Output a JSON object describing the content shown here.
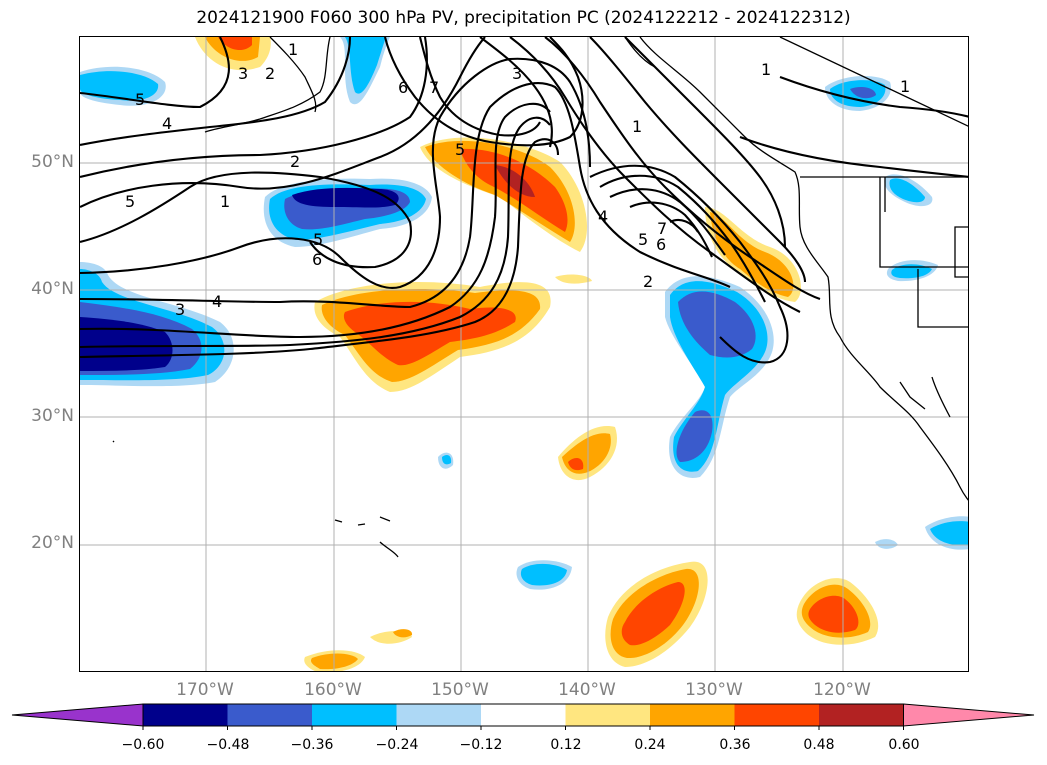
{
  "title": "2024121900 F060 300 hPa PV, precipitation PC (2024122212 - 2024122312)",
  "map": {
    "lat_labels": [
      "50°N",
      "40°N",
      "30°N",
      "20°N"
    ],
    "lon_labels": [
      "170°W",
      "160°W",
      "150°W",
      "140°W",
      "130°W",
      "120°W"
    ],
    "contour_labels": [
      "1",
      "3",
      "2",
      "6",
      "7",
      "3",
      "1",
      "1",
      "1",
      "5",
      "4",
      "2",
      "5",
      "1",
      "5",
      "6",
      "5",
      "4",
      "3",
      "4",
      "7",
      "5",
      "6",
      "2"
    ]
  },
  "colorbar": {
    "ticks": [
      "−0.60",
      "−0.48",
      "−0.36",
      "−0.24",
      "−0.12",
      "0.12",
      "0.24",
      "0.36",
      "0.48",
      "0.60"
    ],
    "colors": [
      "#9933cc",
      "#00008b",
      "#3a5bcc",
      "#00bfff",
      "#add8f5",
      "#ffffff",
      "#ffe680",
      "#ffa500",
      "#ff4500",
      "#b22222",
      "#ff88aa"
    ]
  }
}
